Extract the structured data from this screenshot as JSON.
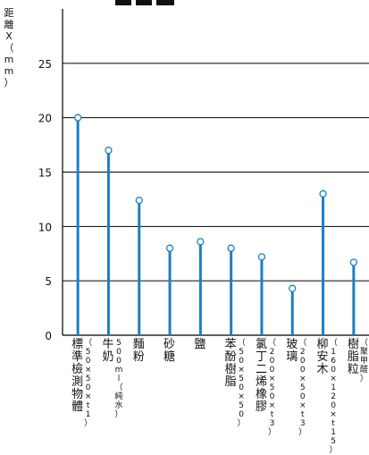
{
  "chart_data": {
    "type": "lollipop",
    "title": "",
    "ylabel": "距離X（mm）",
    "ylim": [
      0,
      30
    ],
    "yticks": [
      0,
      5,
      10,
      15,
      20,
      25
    ],
    "grid": true,
    "colors": {
      "stem": "#1a7fc8",
      "marker_fill": "#ffffff",
      "grid": "#000000"
    },
    "categories": [
      {
        "main": "標準檢測物體",
        "sub": "（50×50×t1）"
      },
      {
        "main": "牛奶",
        "sub": "500ml（純水）"
      },
      {
        "main": "麵粉",
        "sub": ""
      },
      {
        "main": "砂糖",
        "sub": ""
      },
      {
        "main": "鹽",
        "sub": ""
      },
      {
        "main": "苯酚樹脂",
        "sub": "（50×50×50）"
      },
      {
        "main": "氯丁二烯橡膠",
        "sub": "（200×50×t3）"
      },
      {
        "main": "玻璃",
        "sub": "（200×50×t3）"
      },
      {
        "main": "柳安木",
        "sub": "（160×120×t15）"
      },
      {
        "main": "樹脂粒",
        "sub": "（聚甲醛）"
      }
    ],
    "values": [
      20,
      17,
      12.4,
      8,
      8.6,
      8,
      7.2,
      4.3,
      13,
      6.7
    ]
  }
}
